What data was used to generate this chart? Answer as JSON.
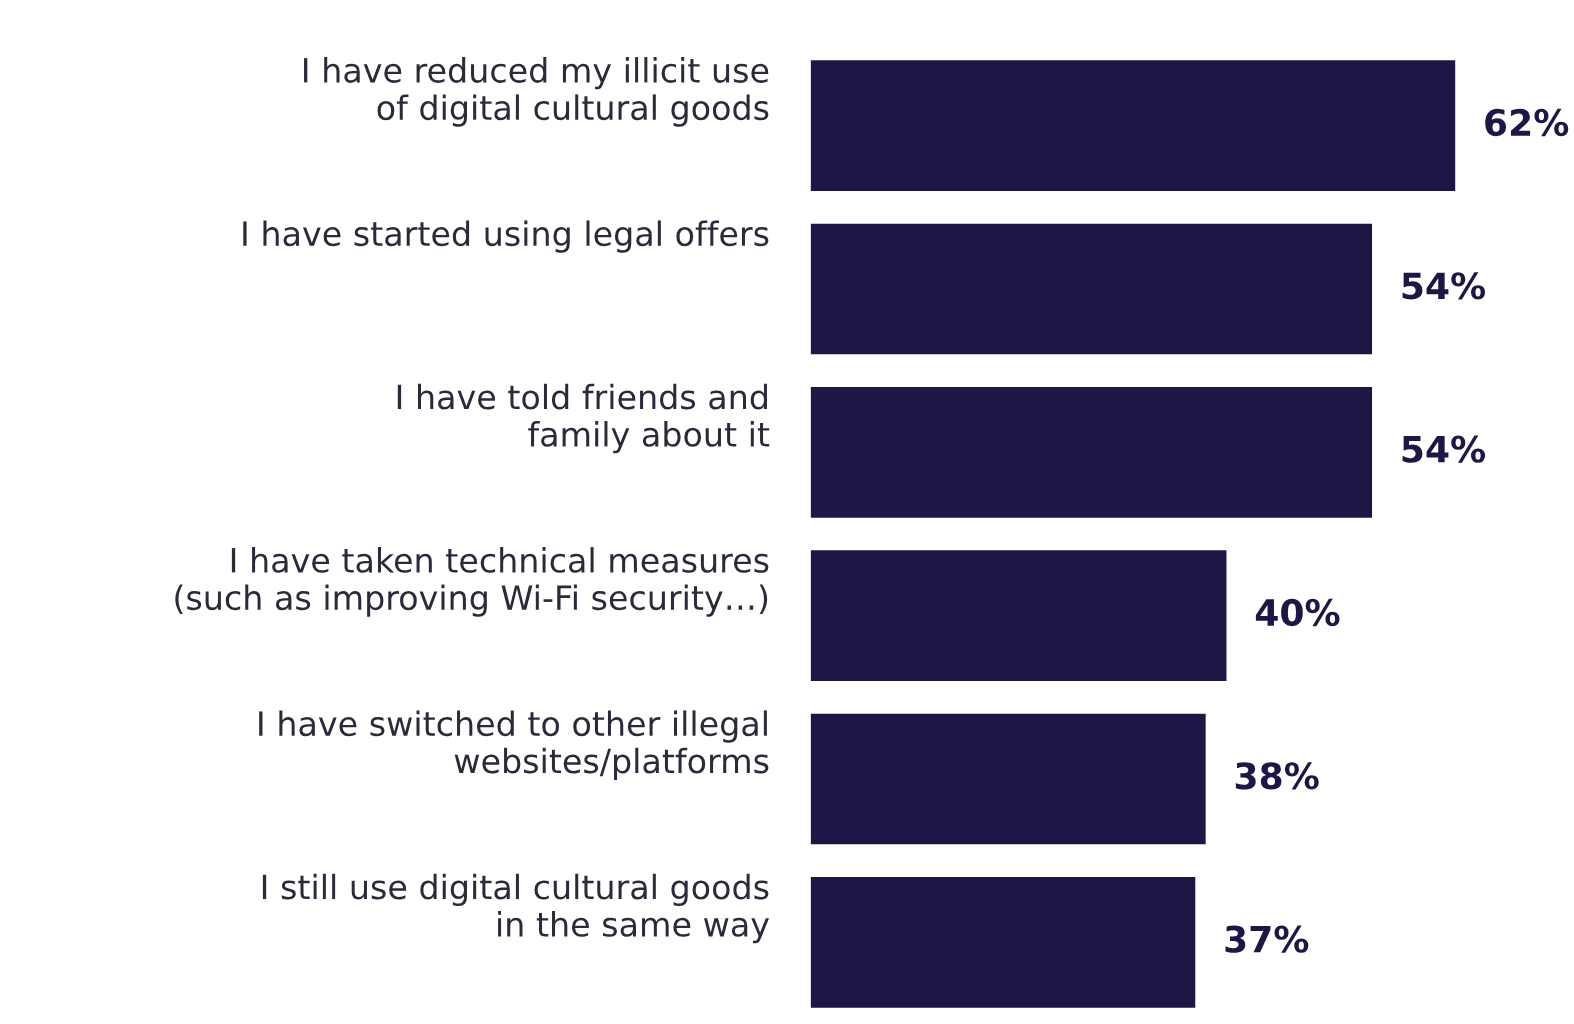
{
  "chart_data": {
    "type": "bar",
    "orientation": "horizontal",
    "categories": [
      "I have reduced my illicit use\nof digital cultural goods",
      "I have started using legal offers",
      "I have told friends and\nfamily about it",
      "I have taken technical measures\n(such as improving Wi-Fi security…)",
      "I have switched to other illegal\nwebsites/platforms",
      "I still use digital cultural goods\nin the same way"
    ],
    "values": [
      62,
      54,
      54,
      40,
      38,
      37
    ],
    "value_labels": [
      "62%",
      "54%",
      "54%",
      "40%",
      "38%",
      "37%"
    ],
    "color": "#1f1646"
  }
}
